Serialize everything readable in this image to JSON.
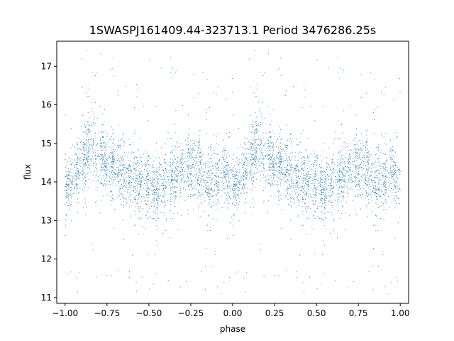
{
  "chart_data": {
    "type": "scatter",
    "title": "1SWASPJ161409.44-323713.1 Period 3476286.25s",
    "xlabel": "phase",
    "ylabel": "flux",
    "xlim": [
      -1.05,
      1.05
    ],
    "ylim": [
      10.85,
      17.65
    ],
    "x_ticks": [
      -1.0,
      -0.75,
      -0.5,
      -0.25,
      0.0,
      0.25,
      0.5,
      0.75,
      1.0
    ],
    "x_tick_labels": [
      "−1.00",
      "−0.75",
      "−0.50",
      "−0.25",
      "0.00",
      "0.25",
      "0.50",
      "0.75",
      "1.00"
    ],
    "y_ticks": [
      11,
      12,
      13,
      14,
      15,
      16,
      17
    ],
    "y_tick_labels": [
      "11",
      "12",
      "13",
      "14",
      "15",
      "16",
      "17"
    ],
    "grid": false,
    "legend": "none",
    "marker_color": "#1f77b4",
    "series": [
      {
        "phase_range": [
          -1.0,
          1.0
        ],
        "repeats_with_period_in_phase": 1.0,
        "profile": [
          {
            "phase": 0.0,
            "median_flux": 13.9
          },
          {
            "phase": 0.05,
            "median_flux": 14.1
          },
          {
            "phase": 0.1,
            "median_flux": 14.5
          },
          {
            "phase": 0.15,
            "median_flux": 14.9
          },
          {
            "phase": 0.2,
            "median_flux": 14.7
          },
          {
            "phase": 0.25,
            "median_flux": 14.5
          },
          {
            "phase": 0.3,
            "median_flux": 14.4
          },
          {
            "phase": 0.35,
            "median_flux": 14.2
          },
          {
            "phase": 0.4,
            "median_flux": 14.1
          },
          {
            "phase": 0.45,
            "median_flux": 13.9
          },
          {
            "phase": 0.5,
            "median_flux": 14.0
          },
          {
            "phase": 0.55,
            "median_flux": 13.7
          },
          {
            "phase": 0.6,
            "median_flux": 14.0
          },
          {
            "phase": 0.65,
            "median_flux": 14.1
          },
          {
            "phase": 0.7,
            "median_flux": 14.2
          },
          {
            "phase": 0.75,
            "median_flux": 14.4
          },
          {
            "phase": 0.8,
            "median_flux": 14.3
          },
          {
            "phase": 0.85,
            "median_flux": 14.1
          },
          {
            "phase": 0.9,
            "median_flux": 14.1
          },
          {
            "phase": 0.95,
            "median_flux": 14.3
          },
          {
            "phase": 1.0,
            "median_flux": 13.9
          }
        ],
        "flux_min": 11.1,
        "flux_max": 17.4
      }
    ]
  }
}
